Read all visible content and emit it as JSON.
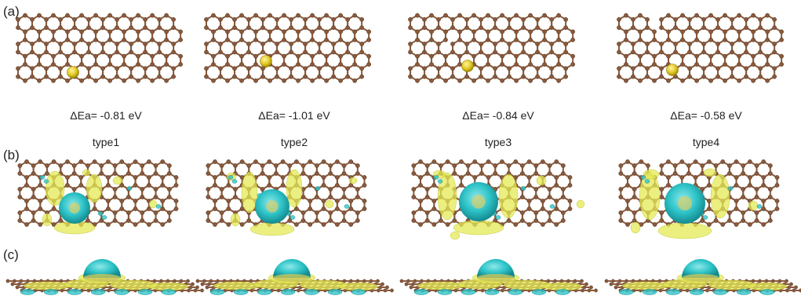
{
  "panel_labels": [
    "(a)",
    "(b)",
    "(c)"
  ],
  "structures": [
    {
      "energy": "ΔEa= -0.81 eV",
      "type": "type1"
    },
    {
      "energy": "ΔEa= -1.01 eV",
      "type": "type2"
    },
    {
      "energy": "ΔEa= -0.84 eV",
      "type": "type3"
    },
    {
      "energy": "ΔEa= -0.58 eV",
      "type": "type4"
    }
  ],
  "colors": {
    "carbon": "#8a5a3c",
    "gold_atom": "#e2c929",
    "charge_accumulation": "#e4ea55",
    "charge_depletion": "#2fc4c8"
  }
}
